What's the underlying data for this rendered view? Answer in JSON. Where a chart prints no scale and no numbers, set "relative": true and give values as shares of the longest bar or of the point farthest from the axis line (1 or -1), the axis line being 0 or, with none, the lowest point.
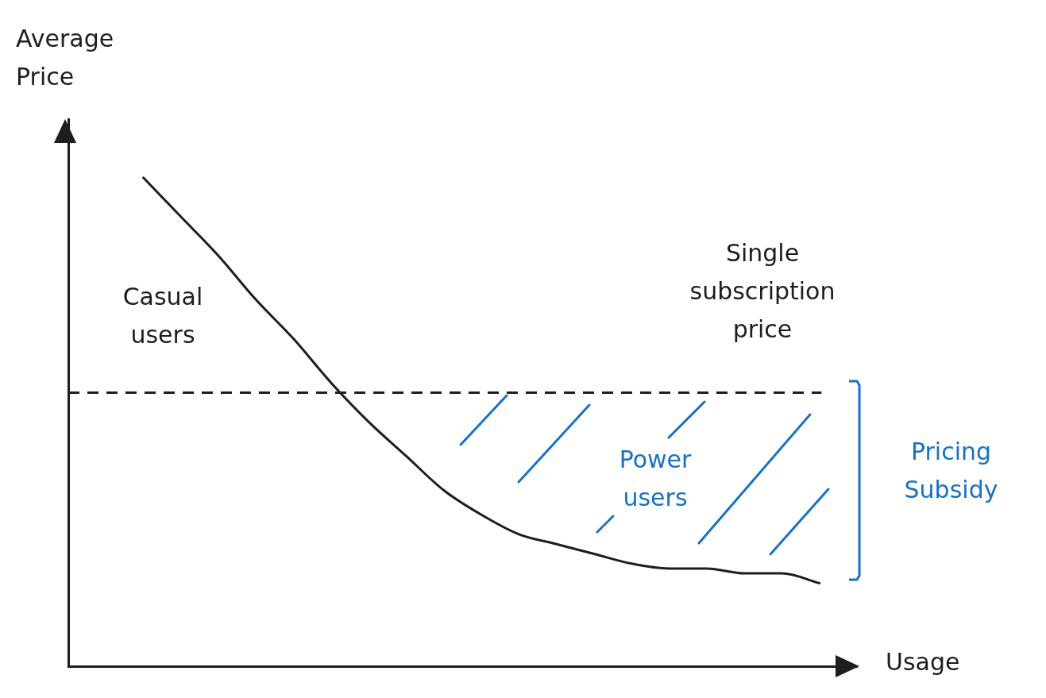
{
  "chart_data": {
    "type": "line",
    "relative": true,
    "xlabel": "Usage",
    "ylabel": "Average Price",
    "categories": [
      null,
      null,
      null,
      null,
      null,
      null,
      null,
      null,
      null,
      null,
      null,
      null,
      null,
      null,
      null,
      null,
      null,
      null,
      null,
      null,
      null,
      null
    ],
    "series": [
      {
        "color": "#1e1e1e",
        "values": [
          null,
          null,
          1.0,
          0.92,
          0.84,
          0.75,
          0.67,
          0.58,
          0.5,
          0.43,
          0.36,
          0.31,
          0.27,
          0.25,
          0.23,
          0.21,
          0.2,
          0.2,
          0.19,
          0.19,
          0.17,
          null
        ]
      }
    ],
    "ref_lines": [
      {
        "axis": "y",
        "value": 0.56,
        "color": "#1e1e1e",
        "line_style": "dashed"
      }
    ],
    "annotations": [
      "Casual users",
      "Single subscription price",
      "Power users",
      "Pricing Subsidy"
    ],
    "grid": false,
    "legend": false,
    "tick_labels": false,
    "marker": "none"
  }
}
